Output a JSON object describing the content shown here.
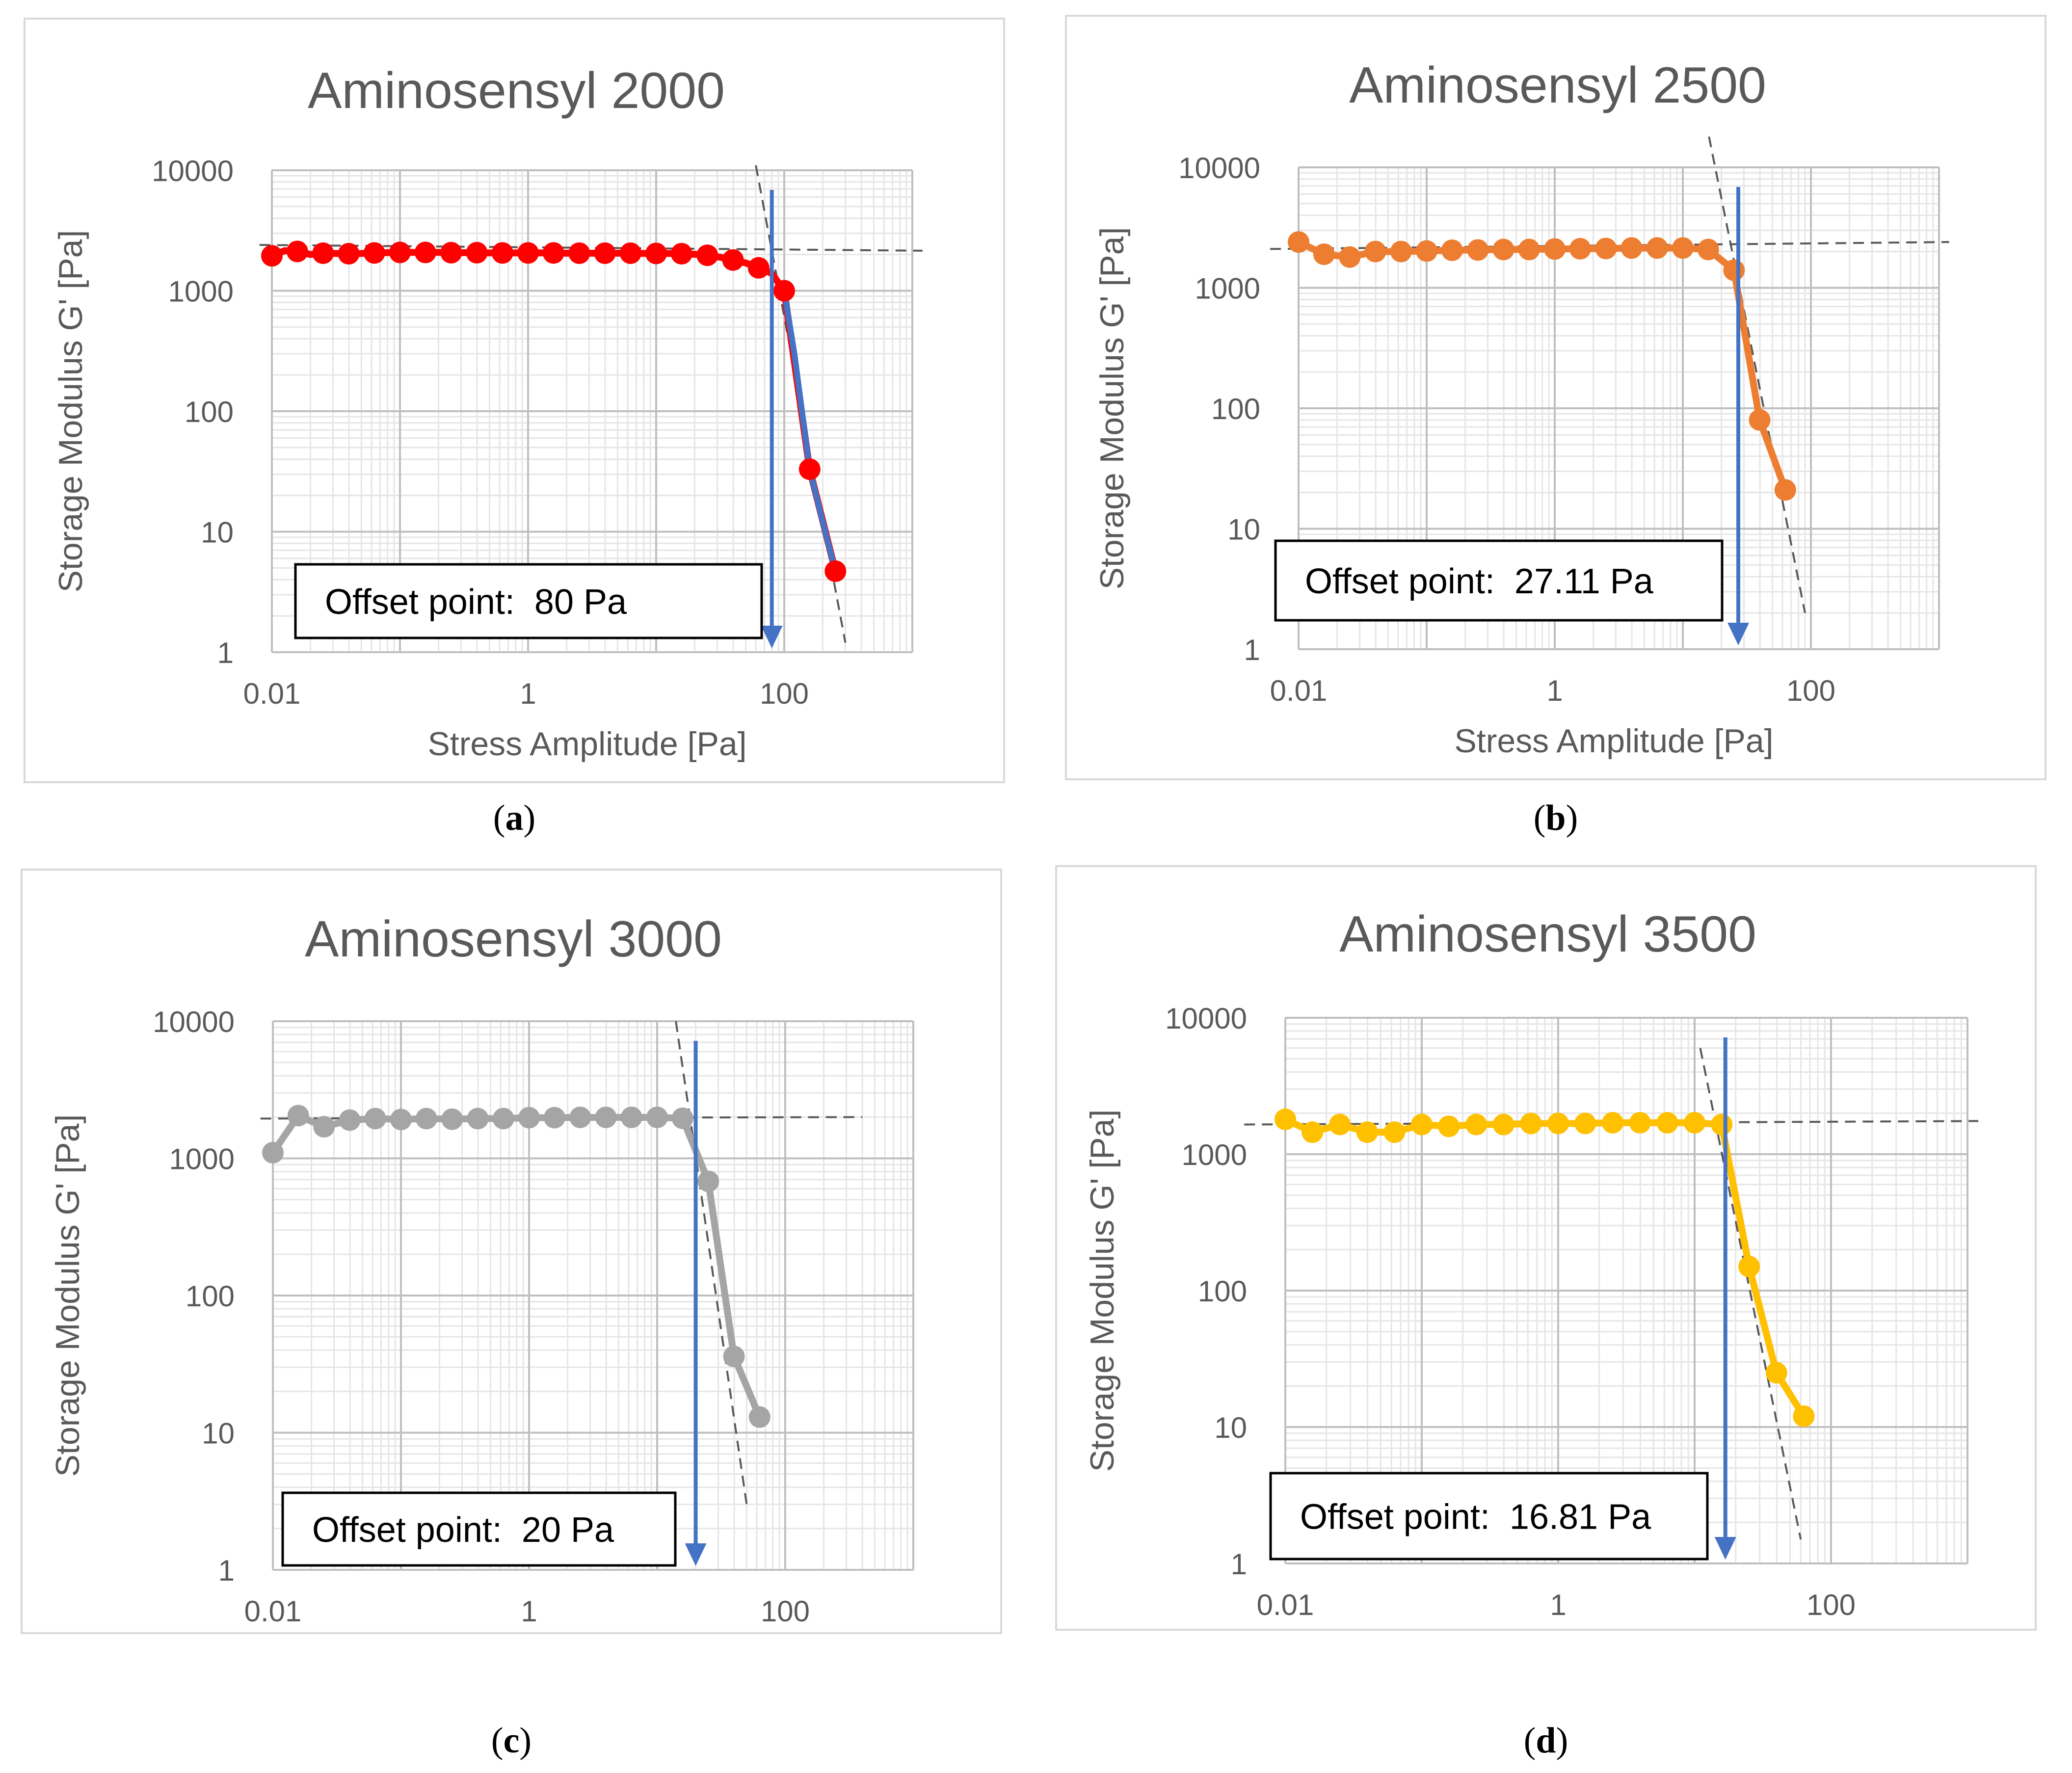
{
  "chart_data": [
    {
      "type": "scatter",
      "panel_label": "a",
      "title": "Aminosensyl 2000",
      "xlabel": "Stress Amplitude [Pa]",
      "ylabel": "Storage Modulus G' [Pa]",
      "xscale": "log",
      "yscale": "log",
      "xlim": [
        0.01,
        1000
      ],
      "ylim": [
        1,
        10000
      ],
      "xticks": [
        "0.01",
        "1",
        "100"
      ],
      "yticks": [
        "1",
        "10",
        "100",
        "1000",
        "10000"
      ],
      "series_color": "#ff0000",
      "x": [
        0.01,
        0.0126,
        0.0158,
        0.02,
        0.0251,
        0.0316,
        0.0398,
        0.0501,
        0.0631,
        0.0794,
        0.1,
        0.126,
        0.158,
        0.2,
        0.251,
        0.316,
        0.398,
        0.501,
        0.631,
        0.794,
        1,
        1.26,
        1.58,
        2,
        2.51,
        3.16,
        3.98,
        5.01,
        6.31,
        7.94,
        10,
        12.6,
        15.8,
        20,
        25.1,
        31.6,
        39.8,
        50.1,
        63.1,
        79.4,
        100,
        158,
        251
      ],
      "values": [
        1950,
        2150,
        2120,
        2000,
        2050,
        2040,
        2030,
        2040,
        2060,
        2070,
        2080,
        2080,
        2080,
        2080,
        2070,
        2070,
        2070,
        2060,
        2060,
        2060,
        2060,
        2060,
        2060,
        2050,
        2050,
        2050,
        2050,
        2050,
        2050,
        2040,
        2040,
        2040,
        2030,
        2010,
        1970,
        1900,
        1800,
        1700,
        1550,
        1400,
        1000,
        33,
        4.7
      ],
      "markers_x": [
        0.01,
        0.0158,
        0.0251,
        0.0398,
        0.0631,
        0.1,
        0.158,
        0.251,
        0.398,
        0.631,
        1,
        1.58,
        2.51,
        3.98,
        6.31,
        10,
        15.8,
        25.1,
        39.8,
        63.1,
        100,
        158,
        251
      ],
      "markers_y": [
        1950,
        2120,
        2050,
        2030,
        2060,
        2080,
        2080,
        2070,
        2070,
        2060,
        2060,
        2060,
        2050,
        2050,
        2050,
        2040,
        2030,
        1970,
        1800,
        1550,
        1000,
        33,
        4.7
      ],
      "fit_line_color": "#4472c4",
      "fit_x": [
        100,
        120,
        158,
        200,
        251
      ],
      "fit_y": [
        1000,
        300,
        33,
        12,
        4.7
      ],
      "tangents": [
        {
          "x": [
            0.008,
            1200
          ],
          "y": [
            2400,
            2150
          ]
        },
        {
          "x": [
            60,
            300
          ],
          "y": [
            11000,
            1.2
          ]
        }
      ],
      "offset_x": 80,
      "annotation": "Offset point:  80 Pa"
    },
    {
      "type": "scatter",
      "panel_label": "b",
      "title": "Aminosensyl 2500",
      "xlabel": "Stress Amplitude [Pa]",
      "ylabel": "Storage Modulus G' [Pa]",
      "xscale": "log",
      "yscale": "log",
      "xlim": [
        0.01,
        1000
      ],
      "ylim": [
        1,
        10000
      ],
      "xticks": [
        "0.01",
        "1",
        "100"
      ],
      "yticks": [
        "1",
        "10",
        "100",
        "1000",
        "10000"
      ],
      "series_color": "#ed7d31",
      "x": [
        0.01,
        0.0158,
        0.0251,
        0.0398,
        0.0631,
        0.1,
        0.158,
        0.251,
        0.398,
        0.631,
        1,
        1.58,
        2.51,
        3.98,
        6.31,
        10,
        15.8,
        25.1,
        39.8,
        63.1
      ],
      "values": [
        2400,
        1900,
        1800,
        2000,
        2000,
        2020,
        2050,
        2060,
        2080,
        2080,
        2100,
        2110,
        2120,
        2140,
        2140,
        2140,
        2080,
        1400,
        80,
        21
      ],
      "markers_x": [
        0.01,
        0.0158,
        0.0251,
        0.0398,
        0.0631,
        0.1,
        0.158,
        0.251,
        0.398,
        0.631,
        1,
        1.58,
        2.51,
        3.98,
        6.31,
        10,
        15.8,
        25.1,
        39.8,
        63.1
      ],
      "markers_y": [
        2400,
        1900,
        1800,
        2000,
        2000,
        2020,
        2050,
        2060,
        2080,
        2080,
        2100,
        2110,
        2120,
        2140,
        2140,
        2140,
        2080,
        1400,
        80,
        21
      ],
      "tangents": [
        {
          "x": [
            0.006,
            1200
          ],
          "y": [
            2100,
            2400
          ]
        },
        {
          "x": [
            16,
            90
          ],
          "y": [
            18000,
            2
          ]
        }
      ],
      "offset_x": 27.11,
      "annotation": "Offset point:  27.11 Pa"
    },
    {
      "type": "scatter",
      "panel_label": "c",
      "title": "Aminosensyl 3000",
      "xlabel": "Stress Amplitude [Pa]",
      "ylabel": "Storage Modulus G' [Pa]",
      "xscale": "log",
      "yscale": "log",
      "xlim": [
        0.01,
        1000
      ],
      "ylim": [
        1,
        10000
      ],
      "xticks": [
        "0.01",
        "1",
        "100"
      ],
      "yticks": [
        "1",
        "10",
        "100",
        "1000",
        "10000"
      ],
      "series_color": "#a5a5a5",
      "x": [
        0.01,
        0.0158,
        0.0251,
        0.0398,
        0.0631,
        0.1,
        0.158,
        0.251,
        0.398,
        0.631,
        1,
        1.58,
        2.51,
        3.98,
        6.31,
        10,
        15.8,
        25.1,
        39.8,
        63.1
      ],
      "values": [
        1100,
        2050,
        1700,
        1900,
        1950,
        1920,
        1950,
        1930,
        1950,
        1950,
        1980,
        1980,
        1990,
        1990,
        1990,
        1990,
        1960,
        680,
        36,
        13
      ],
      "markers_x": [
        0.01,
        0.0158,
        0.0251,
        0.0398,
        0.0631,
        0.1,
        0.158,
        0.251,
        0.398,
        0.631,
        1,
        1.58,
        2.51,
        3.98,
        6.31,
        10,
        15.8,
        25.1,
        39.8,
        63.1
      ],
      "markers_y": [
        1100,
        2050,
        1700,
        1900,
        1950,
        1920,
        1950,
        1930,
        1950,
        1950,
        1980,
        1980,
        1990,
        1990,
        1990,
        1990,
        1960,
        680,
        36,
        13
      ],
      "tangents": [
        {
          "x": [
            0.008,
            400
          ],
          "y": [
            1950,
            2000
          ]
        },
        {
          "x": [
            14,
            50
          ],
          "y": [
            10000,
            3
          ]
        }
      ],
      "offset_x": 20,
      "annotation": "Offset point:  20 Pa"
    },
    {
      "type": "scatter",
      "panel_label": "d",
      "title": "Aminosensyl 3500",
      "xlabel": "Stress Amplitude [Pa]",
      "ylabel": "Storage Modulus G' [Pa]",
      "xscale": "log",
      "yscale": "log",
      "xlim": [
        0.01,
        1000
      ],
      "ylim": [
        1,
        10000
      ],
      "xticks": [
        "0.01",
        "1",
        "100"
      ],
      "yticks": [
        "1",
        "10",
        "100",
        "1000",
        "10000"
      ],
      "series_color": "#ffc000",
      "x": [
        0.01,
        0.0158,
        0.0251,
        0.0398,
        0.0631,
        0.1,
        0.158,
        0.251,
        0.398,
        0.631,
        1,
        1.58,
        2.51,
        3.98,
        6.31,
        10,
        15.8,
        25.1,
        39.8,
        63.1
      ],
      "values": [
        1800,
        1450,
        1650,
        1450,
        1450,
        1650,
        1600,
        1650,
        1650,
        1680,
        1680,
        1680,
        1700,
        1700,
        1700,
        1700,
        1650,
        150,
        25,
        12
      ],
      "markers_x": [
        0.01,
        0.0158,
        0.0251,
        0.0398,
        0.0631,
        0.1,
        0.158,
        0.251,
        0.398,
        0.631,
        1,
        1.58,
        2.51,
        3.98,
        6.31,
        10,
        15.8,
        25.1,
        39.8,
        63.1
      ],
      "markers_y": [
        1800,
        1450,
        1650,
        1450,
        1450,
        1650,
        1600,
        1650,
        1650,
        1680,
        1680,
        1680,
        1700,
        1700,
        1700,
        1700,
        1650,
        150,
        25,
        12
      ],
      "tangents": [
        {
          "x": [
            0.005,
            1200
          ],
          "y": [
            1650,
            1750
          ]
        },
        {
          "x": [
            11,
            60
          ],
          "y": [
            6000,
            1.5
          ]
        }
      ],
      "offset_x": 16.81,
      "annotation": "Offset point:  16.81 Pa"
    }
  ],
  "colors": {
    "grid_major": "#bfbfbf",
    "grid_minor": "#e6e6e6",
    "arrow": "#4472c4",
    "tangent": "#595959"
  }
}
